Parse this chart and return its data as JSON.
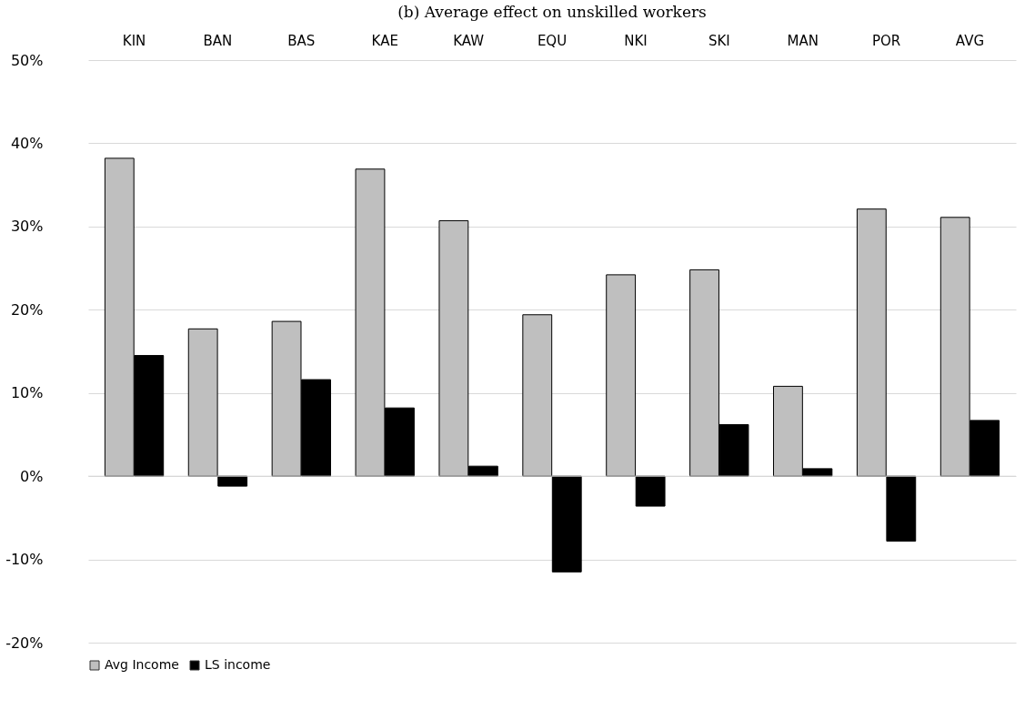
{
  "chart_data": {
    "type": "bar",
    "title": "(b) Average effect on unskilled workers",
    "categories": [
      "KIN",
      "BAN",
      "BAS",
      "KAE",
      "KAW",
      "EQU",
      "NKI",
      "SKI",
      "MAN",
      "POR",
      "AVG"
    ],
    "series": [
      {
        "name": "Avg Income",
        "color": "#bfbfbf",
        "values": [
          38.2,
          17.7,
          18.6,
          36.9,
          30.7,
          19.4,
          24.2,
          24.8,
          10.8,
          32.1,
          31.1
        ]
      },
      {
        "name": "LS income",
        "color": "#000000",
        "values": [
          14.5,
          -1.2,
          11.6,
          8.2,
          1.2,
          -11.5,
          -3.6,
          6.2,
          0.9,
          -7.8,
          6.7
        ]
      }
    ],
    "ylim": [
      -20,
      50
    ],
    "yticks": [
      {
        "value": -20,
        "label": "-20%"
      },
      {
        "value": -10,
        "label": "-10%"
      },
      {
        "value": 0,
        "label": "0%"
      },
      {
        "value": 10,
        "label": "10%"
      },
      {
        "value": 20,
        "label": "20%"
      },
      {
        "value": 30,
        "label": "30%"
      },
      {
        "value": 40,
        "label": "40%"
      },
      {
        "value": 50,
        "label": "50%"
      }
    ],
    "grid": "y",
    "legend": "bottom"
  }
}
